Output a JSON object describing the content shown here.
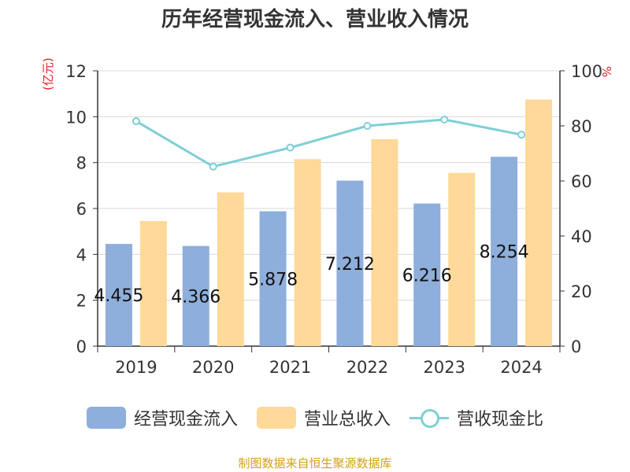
{
  "chart_data": {
    "type": "bar",
    "title": "历年经营现金流入、营业收入情况",
    "left_unit": "(亿元)",
    "right_unit": "%",
    "categories": [
      "2019",
      "2020",
      "2021",
      "2022",
      "2023",
      "2024"
    ],
    "ylim": [
      0,
      12
    ],
    "y_ticks": [
      "0",
      "2",
      "4",
      "6",
      "8",
      "10",
      "12"
    ],
    "y2lim": [
      0,
      100
    ],
    "y2_ticks": [
      "0",
      "20",
      "40",
      "60",
      "80",
      "100"
    ],
    "series": [
      {
        "name": "经营现金流入",
        "type": "bar",
        "axis": "left",
        "color": "#8eaedc",
        "values": [
          4.455,
          4.366,
          5.878,
          7.212,
          6.216,
          8.254
        ],
        "labels": [
          "4.455",
          "4.366",
          "5.878",
          "7.212",
          "6.216",
          "8.254"
        ]
      },
      {
        "name": "营业总收入",
        "type": "bar",
        "axis": "left",
        "color": "#ffd999",
        "values": [
          5.45,
          6.7,
          8.15,
          9.02,
          7.55,
          10.75
        ]
      },
      {
        "name": "营收现金比",
        "type": "line",
        "axis": "right",
        "color": "#7fcfd6",
        "values": [
          81.7,
          65.2,
          72.1,
          80.0,
          82.3,
          76.8
        ]
      }
    ],
    "source": "制图数据来自恒生聚源数据库"
  }
}
